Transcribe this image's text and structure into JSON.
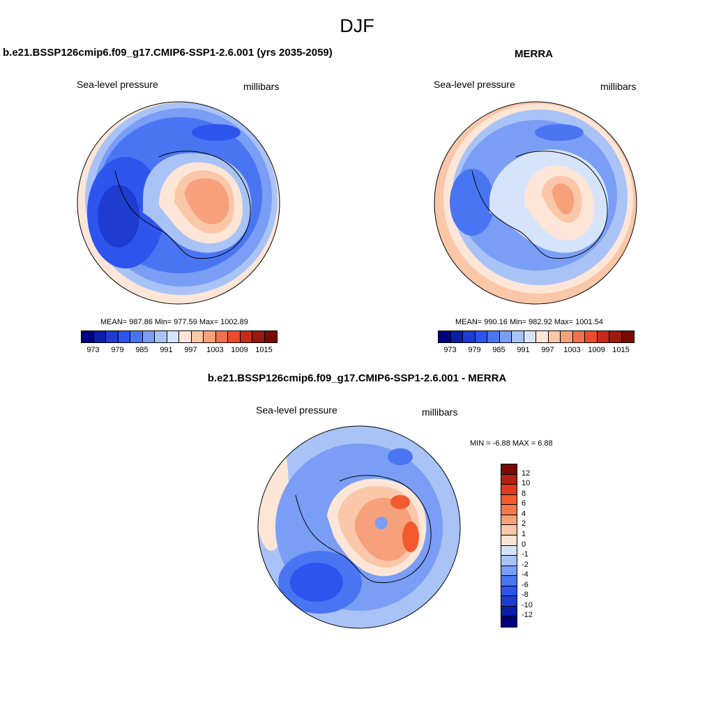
{
  "figure": {
    "title": "DJF",
    "panels": [
      {
        "title": "b.e21.BSSP126cmip6.f09_g17.CMIP6-SSP1-2.6.001 (yrs 2035-2059)",
        "left_label": "Sea-level pressure",
        "right_label": "millibars",
        "stats": "MEAN= 987.86  Min= 977.59  Max= 1002.89"
      },
      {
        "title": "MERRA",
        "left_label": "Sea-level pressure",
        "right_label": "millibars",
        "stats": "MEAN= 990.16  Min= 982.92  Max= 1001.54"
      },
      {
        "title": "b.e21.BSSP126cmip6.f09_g17.CMIP6-SSP1-2.6.001 - MERRA",
        "left_label": "Sea-level pressure",
        "right_label": "millibars",
        "stats": "MIN =  -6.88 MAX =   6.88"
      }
    ]
  },
  "chart_data": [
    {
      "type": "heatmap",
      "projection": "south-polar-stereographic",
      "title": "b.e21.BSSP126cmip6.f09_g17.CMIP6-SSP1-2.6.001 (yrs 2035-2059)",
      "variable": "Sea-level pressure",
      "units": "millibars",
      "mean": 987.86,
      "min": 977.59,
      "max": 1002.89,
      "colorbar": {
        "orientation": "horizontal",
        "tick_labels": [
          "973",
          "979",
          "985",
          "991",
          "997",
          "1003",
          "1009",
          "1015"
        ],
        "colors": [
          "#00007f",
          "#0a1ea8",
          "#1e3cd0",
          "#2d55ee",
          "#4a75f2",
          "#7a9df5",
          "#a9c3f7",
          "#d6e4fb",
          "#fde6d7",
          "#fbc7a9",
          "#f7a07c",
          "#f3704e",
          "#ec4b2e",
          "#c82a1a",
          "#9b1a0f",
          "#780a05"
        ]
      }
    },
    {
      "type": "heatmap",
      "projection": "south-polar-stereographic",
      "title": "MERRA",
      "variable": "Sea-level pressure",
      "units": "millibars",
      "mean": 990.16,
      "min": 982.92,
      "max": 1001.54,
      "colorbar": {
        "orientation": "horizontal",
        "tick_labels": [
          "973",
          "979",
          "985",
          "991",
          "997",
          "1003",
          "1009",
          "1015"
        ],
        "colors": [
          "#00007f",
          "#0a1ea8",
          "#1e3cd0",
          "#2d55ee",
          "#4a75f2",
          "#7a9df5",
          "#a9c3f7",
          "#d6e4fb",
          "#fde6d7",
          "#fbc7a9",
          "#f7a07c",
          "#f3704e",
          "#ec4b2e",
          "#c82a1a",
          "#9b1a0f",
          "#780a05"
        ]
      }
    },
    {
      "type": "heatmap",
      "projection": "south-polar-stereographic",
      "title": "b.e21.BSSP126cmip6.f09_g17.CMIP6-SSP1-2.6.001 - MERRA",
      "variable": "Sea-level pressure",
      "units": "millibars",
      "min": -6.88,
      "max": 6.88,
      "colorbar": {
        "orientation": "vertical",
        "tick_labels": [
          "12",
          "10",
          "8",
          "6",
          "4",
          "2",
          "1",
          "0",
          "-1",
          "-2",
          "-4",
          "-6",
          "-8",
          "-10",
          "-12"
        ],
        "colors": [
          "#7a0a05",
          "#b5200f",
          "#e03a1c",
          "#f45a2f",
          "#f4794a",
          "#f7a07c",
          "#fbc7a9",
          "#fde6d7",
          "#d6e4fb",
          "#a9c3f7",
          "#7a9df5",
          "#4a75f2",
          "#2d55ee",
          "#1e3cd0",
          "#0a1ea8",
          "#00007f"
        ]
      }
    }
  ]
}
